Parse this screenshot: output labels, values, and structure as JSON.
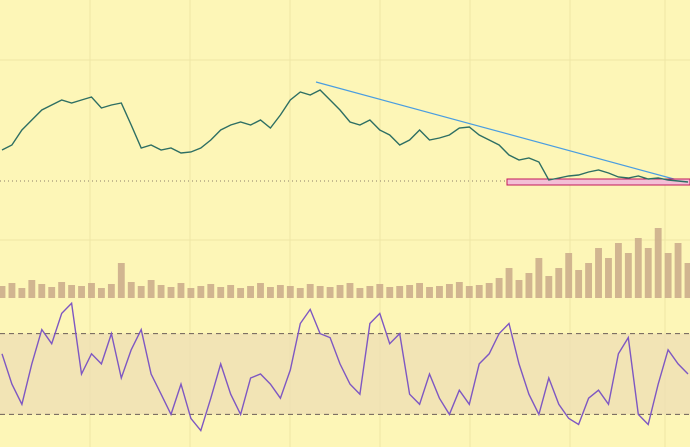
{
  "chart_data": [
    {
      "type": "line",
      "color": "#2e6f63",
      "ylim": [
        0,
        130
      ],
      "values": [
        50,
        55,
        70,
        80,
        90,
        95,
        100,
        97,
        100,
        103,
        92,
        95,
        97,
        75,
        52,
        55,
        50,
        52,
        47,
        48,
        52,
        60,
        70,
        75,
        78,
        75,
        80,
        72,
        85,
        100,
        108,
        105,
        110,
        100,
        90,
        78,
        75,
        80,
        70,
        65,
        55,
        60,
        70,
        60,
        62,
        65,
        72,
        73,
        65,
        60,
        55,
        45,
        40,
        42,
        38,
        20,
        22,
        24,
        25,
        28,
        30,
        27,
        23,
        22,
        24,
        21,
        22,
        20,
        19,
        18
      ]
    },
    {
      "type": "bar",
      "color": "#c9a98a",
      "ylim": [
        0,
        80
      ],
      "values": [
        12,
        15,
        10,
        18,
        14,
        11,
        16,
        13,
        12,
        15,
        10,
        14,
        35,
        16,
        12,
        18,
        13,
        11,
        15,
        10,
        12,
        14,
        11,
        13,
        10,
        12,
        15,
        11,
        13,
        12,
        10,
        14,
        12,
        11,
        13,
        15,
        10,
        12,
        14,
        11,
        12,
        13,
        15,
        11,
        12,
        14,
        16,
        12,
        13,
        15,
        20,
        30,
        18,
        25,
        40,
        22,
        30,
        45,
        28,
        35,
        50,
        40,
        55,
        45,
        60,
        50,
        70,
        45,
        55,
        35
      ]
    },
    {
      "type": "line",
      "color": "#7e57c2",
      "ylim": [
        0,
        100
      ],
      "levels": [
        30,
        70
      ],
      "values": [
        60,
        45,
        35,
        55,
        72,
        65,
        80,
        85,
        50,
        60,
        55,
        70,
        48,
        62,
        72,
        50,
        40,
        30,
        45,
        28,
        22,
        38,
        55,
        40,
        30,
        48,
        50,
        45,
        38,
        52,
        75,
        82,
        70,
        68,
        55,
        45,
        40,
        75,
        80,
        65,
        70,
        40,
        35,
        50,
        38,
        30,
        42,
        35,
        55,
        60,
        70,
        75,
        55,
        40,
        30,
        48,
        35,
        28,
        25,
        38,
        42,
        35,
        60,
        68,
        30,
        25,
        45,
        62,
        55,
        50
      ]
    }
  ]
}
